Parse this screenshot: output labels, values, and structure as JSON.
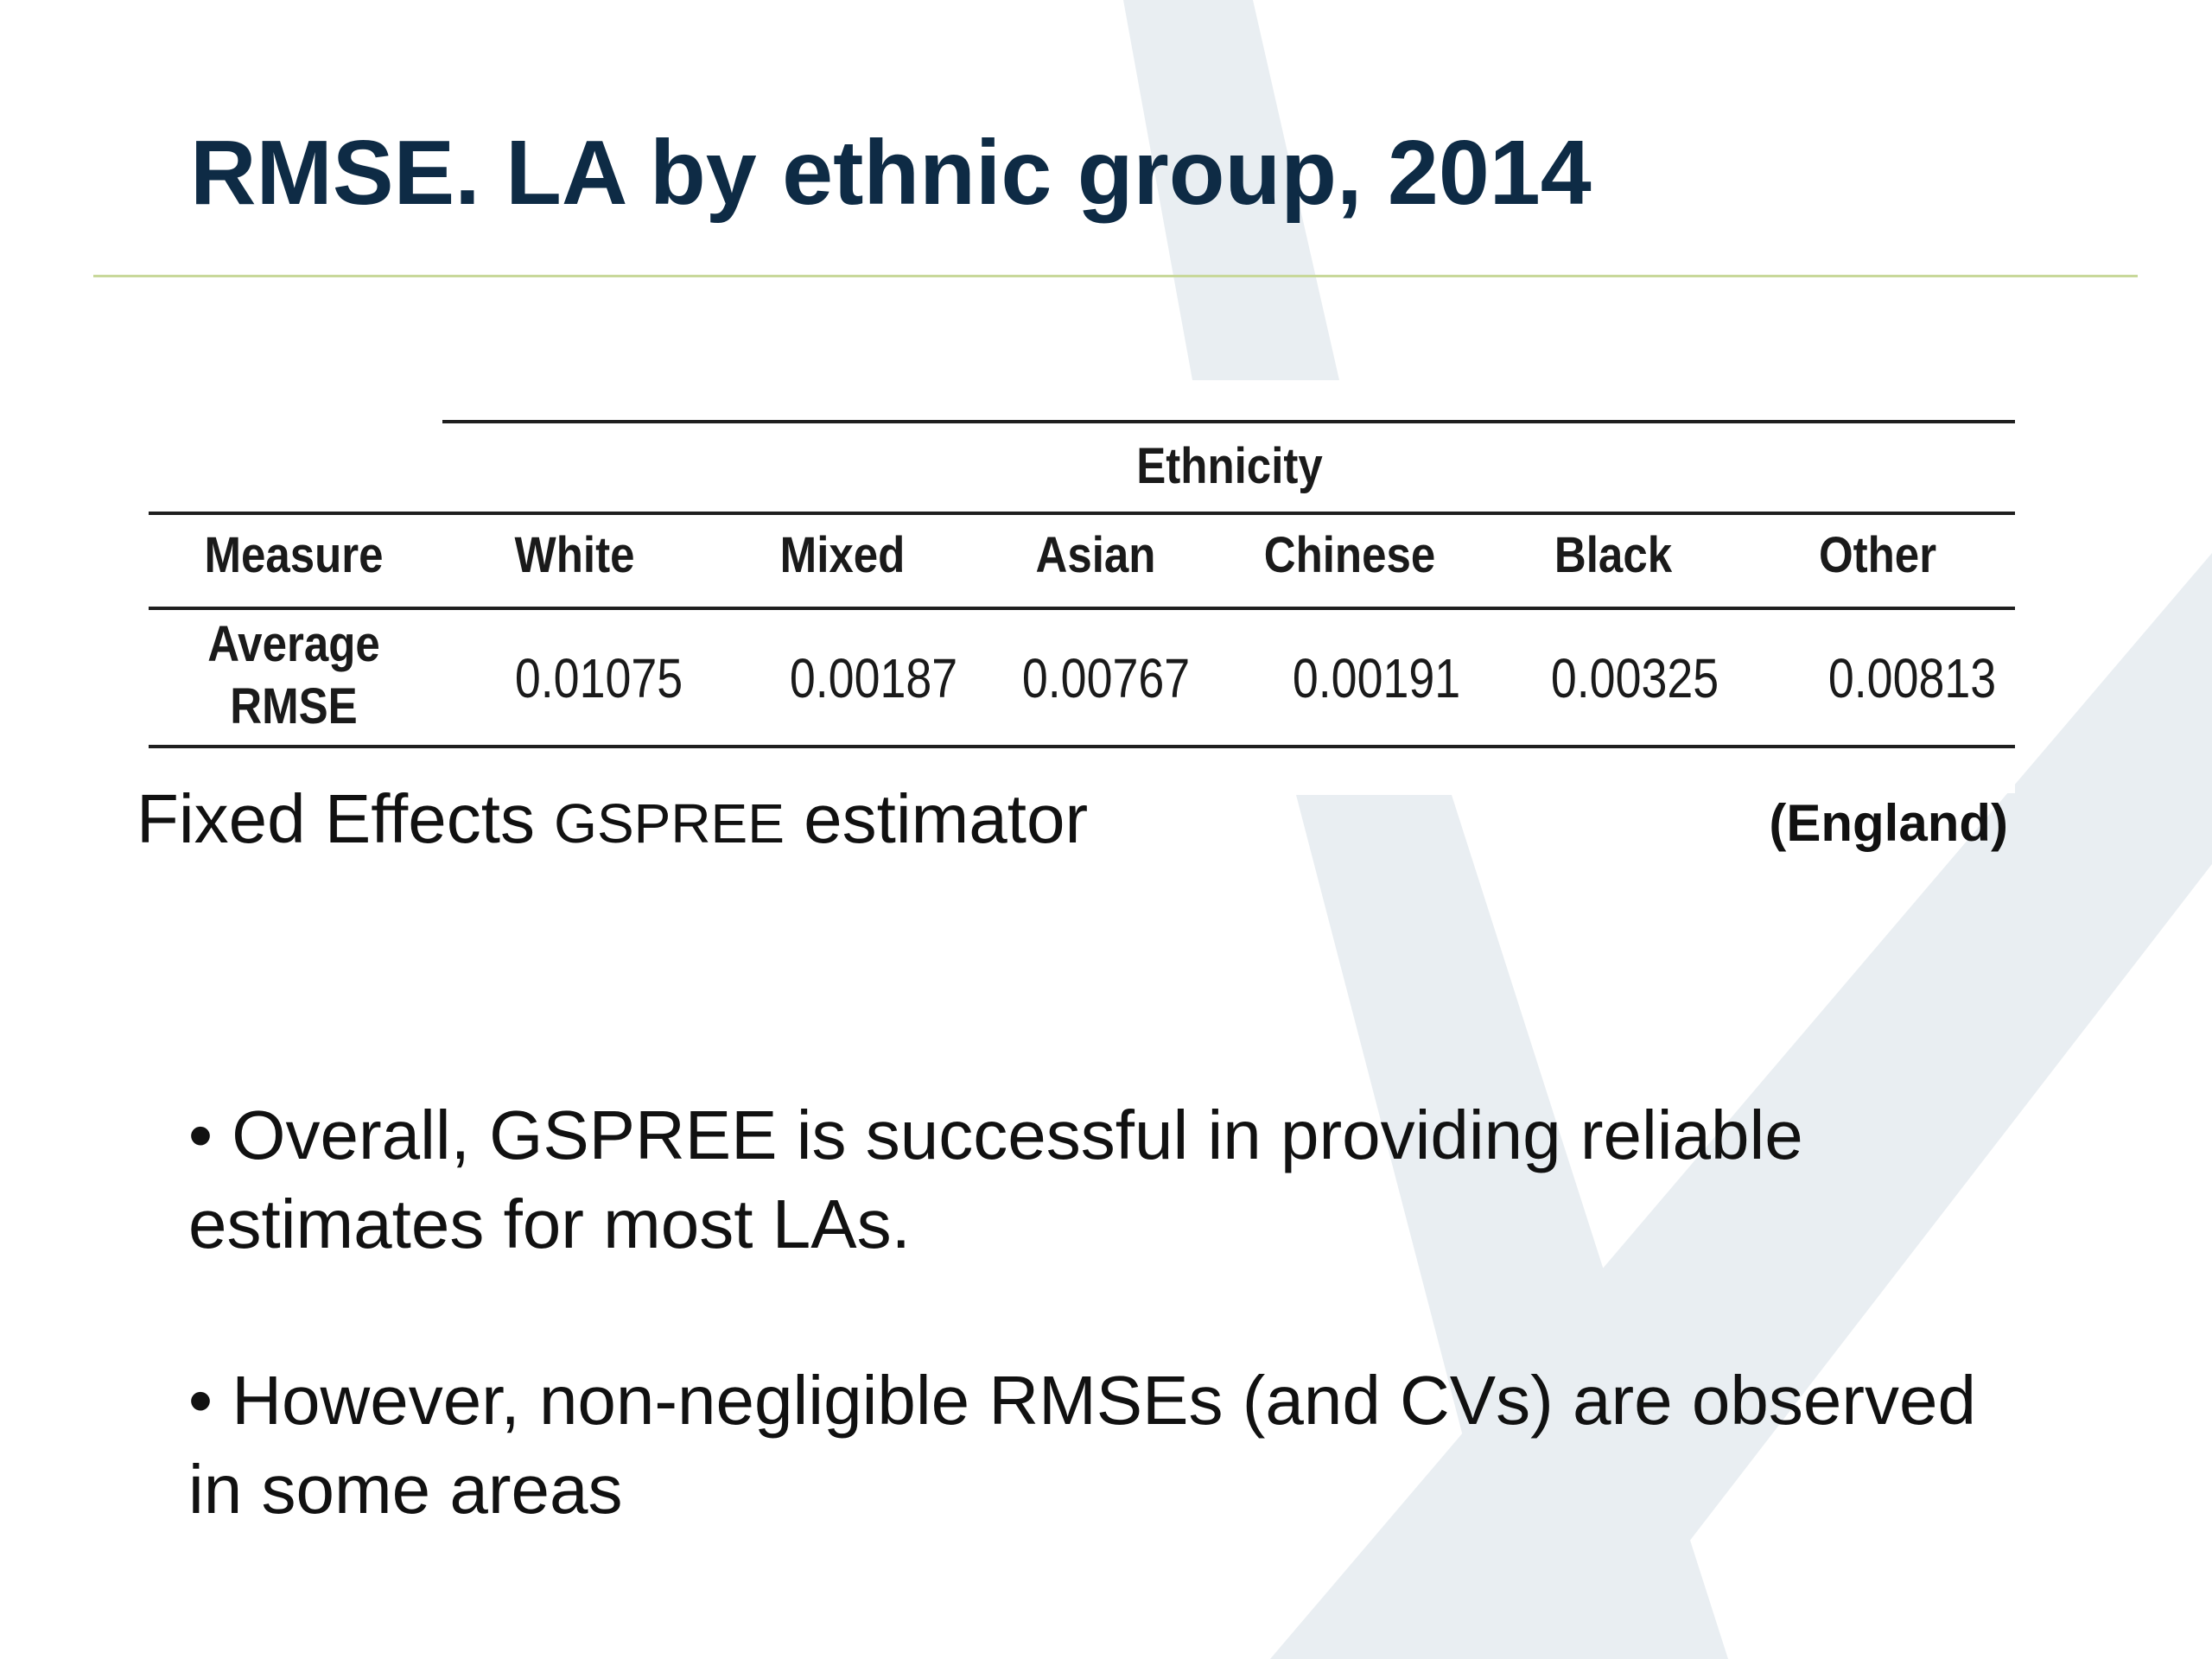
{
  "slide": {
    "title": "RMSE. LA by ethnic group, 2014"
  },
  "table": {
    "group_header": "Ethnicity",
    "measure_header": "Measure",
    "columns": [
      "White",
      "Mixed",
      "Asian",
      "Chinese",
      "Black",
      "Other"
    ],
    "rows": [
      {
        "measure_line1": "Average",
        "measure_line2": "RMSE",
        "values": [
          "0.01075",
          "0.00187",
          "0.00767",
          "0.00191",
          "0.00325",
          "0.00813"
        ]
      }
    ]
  },
  "caption": {
    "prefix": "Fixed Effects ",
    "estimator": "GSPREE",
    "suffix": " estimator",
    "region": "(England)"
  },
  "bullets": [
    "• Overall, GSPREE is successful in providing reliable estimates for most LAs.",
    "• However, non-negligible RMSEs (and CVs) are observed in some areas"
  ],
  "colors": {
    "title": "#0e2b45",
    "rule": "#c8d89a",
    "watermark": "#e9eef2"
  }
}
